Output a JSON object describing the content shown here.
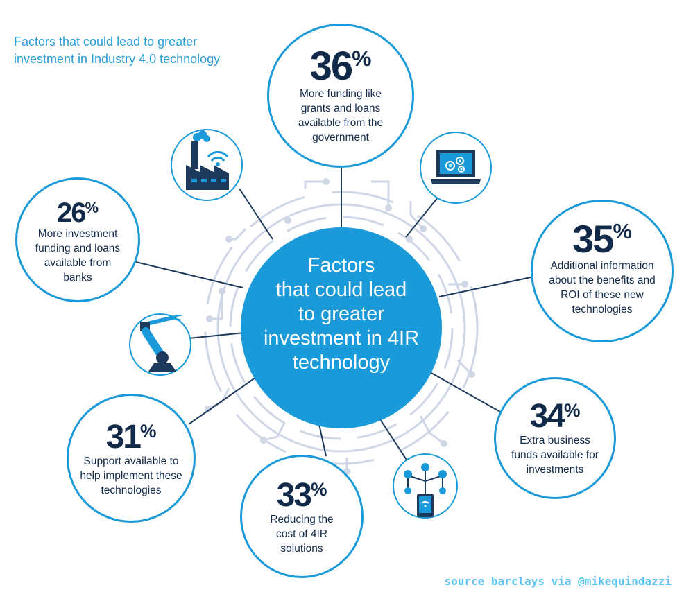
{
  "title": {
    "line1": "Factors that could lead to greater",
    "line2": "investment in Industry 4.0 technology"
  },
  "center": {
    "lines": [
      "Factors",
      "that could lead",
      "to greater",
      "investment in 4IR",
      "technology"
    ]
  },
  "factors": [
    {
      "value": 36,
      "value_text": "36",
      "unit": "%",
      "desc_lines": [
        "More funding like",
        "grants and loans",
        "available from the",
        "government"
      ]
    },
    {
      "value": 35,
      "value_text": "35",
      "unit": "%",
      "desc_lines": [
        "Additional information",
        "about the benefits and",
        "ROI of these new",
        "technologies"
      ]
    },
    {
      "value": 34,
      "value_text": "34",
      "unit": "%",
      "desc_lines": [
        "Extra business",
        "funds available for",
        "investments"
      ]
    },
    {
      "value": 33,
      "value_text": "33",
      "unit": "%",
      "desc_lines": [
        "Reducing the",
        "cost of 4IR",
        "solutions"
      ]
    },
    {
      "value": 31,
      "value_text": "31",
      "unit": "%",
      "desc_lines": [
        "Support available to",
        "help implement these",
        "technologies"
      ]
    },
    {
      "value": 26,
      "value_text": "26",
      "unit": "%",
      "desc_lines": [
        "More investment",
        "funding and loans",
        "available from",
        "banks"
      ]
    }
  ],
  "icons": [
    "smart-factory-icon",
    "laptop-gears-icon",
    "robot-arm-icon",
    "connected-phone-icon"
  ],
  "credit": "source barclays via @mikequindazzi",
  "colors": {
    "accent": "#1a9ad8",
    "text": "#122a4a",
    "title": "#2a9fd6",
    "circuit": "#cfd6e6",
    "credit": "#5bc3f0"
  }
}
